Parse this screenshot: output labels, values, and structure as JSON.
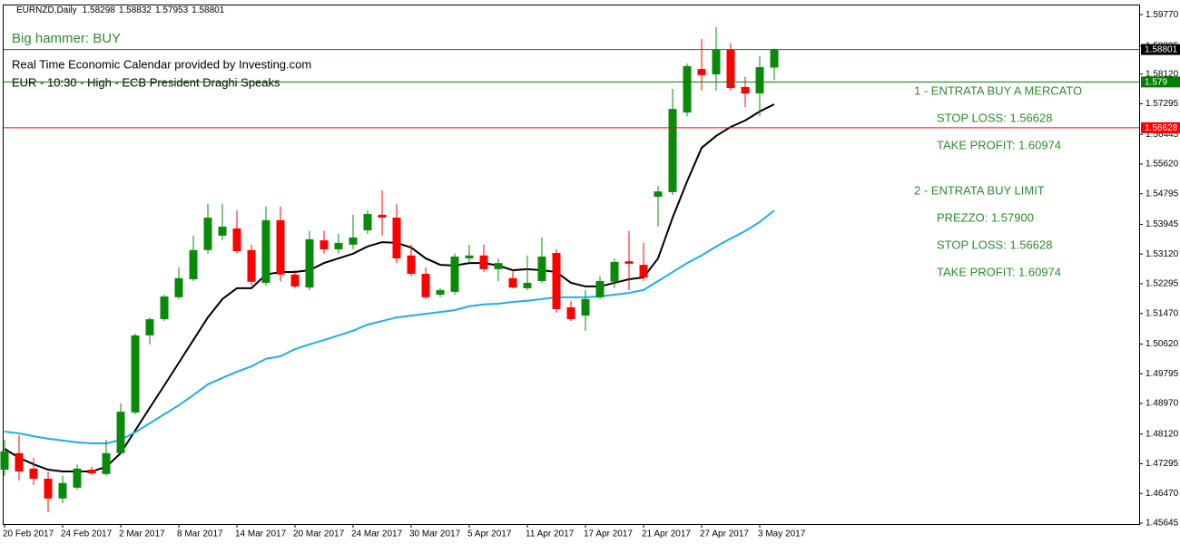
{
  "chart_data": {
    "type": "candlestick",
    "symbol": "EURNZD,Daily",
    "categories": [
      "20 Feb 2017",
      null,
      null,
      null,
      "24 Feb 2017",
      null,
      null,
      null,
      "2 Mar 2017",
      null,
      null,
      null,
      "8 Mar 2017",
      null,
      null,
      null,
      "14 Mar 2017",
      null,
      null,
      null,
      "20 Mar 2017",
      null,
      null,
      null,
      "24 Mar 2017",
      null,
      null,
      null,
      "30 Mar 2017",
      null,
      null,
      null,
      "5 Apr 2017",
      null,
      null,
      null,
      "11 Apr 2017",
      null,
      null,
      null,
      "17 Apr 2017",
      null,
      null,
      null,
      "21 Apr 2017",
      null,
      null,
      null,
      "27 Apr 2017",
      null,
      null,
      null,
      "3 May 2017",
      null
    ],
    "open": [
      1.4713,
      1.4759,
      1.4716,
      1.4688,
      1.4633,
      1.4663,
      1.4713,
      1.4701,
      1.4759,
      1.4872,
      1.5086,
      1.5131,
      1.5192,
      1.5242,
      1.5323,
      1.5363,
      1.5383,
      1.5323,
      1.5232,
      1.5406,
      1.5255,
      1.5219,
      1.535,
      1.5325,
      1.5338,
      1.5378,
      1.5421,
      1.5413,
      1.5308,
      1.5257,
      1.5199,
      1.5207,
      1.53,
      1.5308,
      1.527,
      1.5245,
      1.5217,
      1.5237,
      1.5315,
      1.5164,
      1.5141,
      1.5192,
      1.5235,
      1.5292,
      1.5282,
      1.5471,
      1.5484,
      1.5705,
      1.5826,
      1.5811,
      1.5879,
      1.5776,
      1.5758,
      1.58298
    ],
    "high": [
      1.4796,
      1.4809,
      1.4746,
      1.4708,
      1.4696,
      1.4728,
      1.4721,
      1.4796,
      1.4897,
      1.5091,
      1.5136,
      1.5199,
      1.5275,
      1.5363,
      1.5451,
      1.5451,
      1.5433,
      1.5338,
      1.5444,
      1.5444,
      1.5267,
      1.5376,
      1.5376,
      1.5368,
      1.5421,
      1.5433,
      1.5489,
      1.5451,
      1.5338,
      1.5275,
      1.5217,
      1.5313,
      1.5338,
      1.5338,
      1.53,
      1.5267,
      1.5308,
      1.5358,
      1.5325,
      1.5182,
      1.5212,
      1.525,
      1.53,
      1.5376,
      1.5343,
      1.5501,
      1.5771,
      1.5841,
      1.5909,
      1.5942,
      1.5897,
      1.5804,
      1.5861,
      1.58832
    ],
    "low": [
      1.4696,
      1.4683,
      1.4671,
      1.4595,
      1.462,
      1.4658,
      1.4698,
      1.4696,
      1.4754,
      1.4867,
      1.5061,
      1.5126,
      1.5187,
      1.5237,
      1.5313,
      1.535,
      1.5313,
      1.5224,
      1.5224,
      1.5237,
      1.5217,
      1.5212,
      1.5313,
      1.5313,
      1.5325,
      1.5368,
      1.5363,
      1.5287,
      1.525,
      1.5187,
      1.5192,
      1.5199,
      1.5287,
      1.5262,
      1.5237,
      1.5217,
      1.5212,
      1.5232,
      1.5149,
      1.5126,
      1.5099,
      1.5187,
      1.5217,
      1.5212,
      1.5237,
      1.5388,
      1.5476,
      1.5695,
      1.5766,
      1.5766,
      1.5766,
      1.572,
      1.5695,
      1.57953
    ],
    "close": [
      1.4764,
      1.4708,
      1.4688,
      1.4633,
      1.4676,
      1.4716,
      1.4703,
      1.4759,
      1.4874,
      1.5086,
      1.5131,
      1.5194,
      1.5245,
      1.5323,
      1.5413,
      1.5388,
      1.532,
      1.5235,
      1.5406,
      1.5255,
      1.5222,
      1.5353,
      1.5325,
      1.5343,
      1.5358,
      1.5423,
      1.5413,
      1.53,
      1.5257,
      1.5192,
      1.5212,
      1.5305,
      1.5308,
      1.527,
      1.5287,
      1.5219,
      1.5232,
      1.5305,
      1.5159,
      1.5131,
      1.5187,
      1.5237,
      1.529,
      1.5285,
      1.5247,
      1.5486,
      1.5715,
      1.5834,
      1.5809,
      1.5879,
      1.5773,
      1.5758,
      1.5831,
      1.58801
    ],
    "up_color": "#0a8a0a",
    "down_color": "#ff0000",
    "series": [
      {
        "color": "#000000",
        "values": [
          1.4771,
          1.4746,
          1.4728,
          1.4713,
          1.4708,
          1.4708,
          1.4708,
          1.4721,
          1.4759,
          1.4822,
          1.4885,
          1.4947,
          1.501,
          1.5073,
          1.5136,
          1.5187,
          1.5217,
          1.5217,
          1.5255,
          1.5262,
          1.5262,
          1.5267,
          1.5287,
          1.53,
          1.5313,
          1.5333,
          1.5345,
          1.5343,
          1.533,
          1.53,
          1.5282,
          1.528,
          1.5287,
          1.5287,
          1.528,
          1.5267,
          1.527,
          1.5267,
          1.5262,
          1.5232,
          1.5222,
          1.5222,
          1.5232,
          1.5242,
          1.5247,
          1.53,
          1.5413,
          1.5514,
          1.5607,
          1.564,
          1.5665,
          1.5683,
          1.5708,
          1.5728
        ]
      },
      {
        "color": "#1eaee8",
        "values": [
          1.4819,
          1.4814,
          1.4806,
          1.4799,
          1.4794,
          1.4789,
          1.4786,
          1.4786,
          1.4796,
          1.4817,
          1.4842,
          1.4867,
          1.4892,
          1.492,
          1.495,
          1.4968,
          1.4985,
          1.5,
          1.5021,
          1.5028,
          1.5048,
          1.5061,
          1.5073,
          1.5086,
          1.5099,
          1.5116,
          1.5126,
          1.5136,
          1.5141,
          1.5146,
          1.5151,
          1.5156,
          1.5167,
          1.5172,
          1.5174,
          1.5179,
          1.5182,
          1.5187,
          1.5192,
          1.5192,
          1.5192,
          1.5194,
          1.5199,
          1.5204,
          1.5212,
          1.5237,
          1.5262,
          1.5287,
          1.5308,
          1.5333,
          1.5355,
          1.5376,
          1.5401,
          1.5433
        ]
      }
    ],
    "ylim": [
      1.4562,
      1.6005
    ],
    "yticks": [
      {
        "value": 1.5977,
        "label": "1.59770"
      },
      {
        "value": 1.58895,
        "label": "1.58895"
      },
      {
        "value": 1.5812,
        "label": "1.58120"
      },
      {
        "value": 1.57295,
        "label": "1.57295"
      },
      {
        "value": 1.56445,
        "label": "1.56445"
      },
      {
        "value": 1.5562,
        "label": "1.55620"
      },
      {
        "value": 1.54795,
        "label": "1.54795"
      },
      {
        "value": 1.53945,
        "label": "1.53945"
      },
      {
        "value": 1.5312,
        "label": "1.53120"
      },
      {
        "value": 1.52295,
        "label": "1.52295"
      },
      {
        "value": 1.5147,
        "label": "1.51470"
      },
      {
        "value": 1.5062,
        "label": "1.50620"
      },
      {
        "value": 1.49795,
        "label": "1.49795"
      },
      {
        "value": 1.4897,
        "label": "1.48970"
      },
      {
        "value": 1.4812,
        "label": "1.48120"
      },
      {
        "value": 1.47295,
        "label": "1.47295"
      },
      {
        "value": 1.4647,
        "label": "1.46470"
      },
      {
        "value": 1.45645,
        "label": "1.45645"
      }
    ],
    "hlines": [
      {
        "value": 1.58801,
        "color": "#008000",
        "label_color": "#000000"
      },
      {
        "value": 1.579,
        "color": "#008000",
        "label_color": "#008000"
      },
      {
        "value": 1.56628,
        "color": "#ff0000",
        "label_color": "#ff0000"
      }
    ],
    "annotations": {
      "signal": "Big hammer: BUY",
      "calendar": "Real Time Economic Calendar provided by Investing.com",
      "event": "EUR - 10:30 - High - ECB President Draghi Speaks"
    },
    "notes": [
      {
        "heading": "1 - ENTRATA BUY A MERCATO",
        "lines": [
          "STOP LOSS: 1.56628",
          "TAKE PROFIT: 1.60974"
        ]
      },
      {
        "heading": "2 - ENTRATA BUY LIMIT",
        "lines": [
          "PREZZO: 1.57900",
          "STOP LOSS: 1.56628",
          "TAKE PROFIT: 1.60974"
        ]
      }
    ],
    "text_color": "#2e8b2e"
  }
}
